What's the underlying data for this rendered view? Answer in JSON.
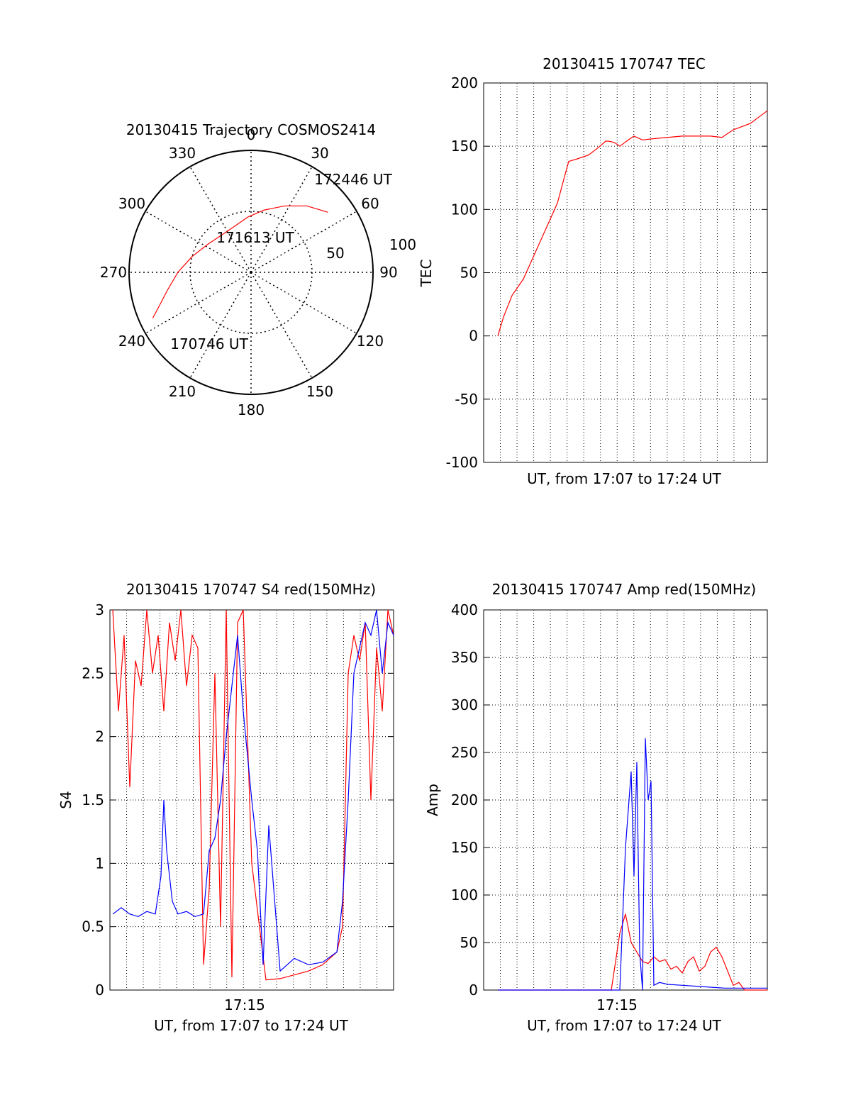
{
  "colors": {
    "red": "#ff0000",
    "blue": "#0000ff",
    "axis": "#000000",
    "grid": "#000000"
  },
  "chart_data": [
    {
      "type": "polar",
      "title": "20130415 Trajectory COSMOS2414",
      "angle_ticks": [
        "0",
        "30",
        "60",
        "90",
        "120",
        "150",
        "180",
        "210",
        "240",
        "270",
        "300",
        "330"
      ],
      "radial_ticks": [
        "50",
        "100"
      ],
      "grid": true,
      "series": [
        {
          "color": "red",
          "points": [
            {
              "azimuth": 245,
              "elevation": 10
            },
            {
              "azimuth": 250,
              "elevation": 18
            },
            {
              "azimuth": 258,
              "elevation": 27
            },
            {
              "azimuth": 270,
              "elevation": 36
            },
            {
              "azimuth": 285,
              "elevation": 45
            },
            {
              "azimuth": 303,
              "elevation": 52
            },
            {
              "azimuth": 322,
              "elevation": 55
            },
            {
              "azimuth": 340,
              "elevation": 54
            },
            {
              "azimuth": 357,
              "elevation": 49
            },
            {
              "azimuth": 12,
              "elevation": 43
            },
            {
              "azimuth": 27,
              "elevation": 35
            },
            {
              "azimuth": 40,
              "elevation": 26
            },
            {
              "azimuth": 52,
              "elevation": 18
            }
          ]
        }
      ],
      "annotations": [
        {
          "text": "172446 UT",
          "azimuth": 50,
          "elevation": 10
        },
        {
          "text": "171613 UT",
          "azimuth": 10,
          "elevation": 65
        },
        {
          "text": "170746 UT",
          "azimuth": 220,
          "elevation": 25
        }
      ]
    },
    {
      "type": "line",
      "title": "20130415 170747 TEC",
      "xlabel": "UT, from 17:07 to 17:24 UT",
      "ylabel": "TEC",
      "xlim": [
        0,
        1
      ],
      "ylim": [
        -100,
        200
      ],
      "yticks": [
        "-100",
        "-50",
        "0",
        "50",
        "100",
        "150",
        "200"
      ],
      "grid": true,
      "series": [
        {
          "color": "red",
          "x": [
            0.05,
            0.07,
            0.1,
            0.14,
            0.18,
            0.22,
            0.26,
            0.29,
            0.3,
            0.33,
            0.37,
            0.41,
            0.43,
            0.44,
            0.46,
            0.48,
            0.51,
            0.53,
            0.56,
            0.6,
            0.7,
            0.8,
            0.84,
            0.88,
            0.94,
            1.0
          ],
          "y": [
            0,
            15,
            32,
            45,
            65,
            85,
            105,
            130,
            138,
            140,
            143,
            150,
            154,
            154,
            153,
            150,
            155,
            158,
            155,
            156,
            158,
            158,
            157,
            163,
            168,
            178
          ]
        }
      ]
    },
    {
      "type": "line",
      "title": "20130415 170747 S4 red(150MHz)",
      "xlabel": "UT, from 17:07 to 17:24 UT",
      "ylabel": "S4",
      "xtick": "17:15",
      "xlim": [
        0,
        1
      ],
      "ylim": [
        0,
        3
      ],
      "yticks": [
        "0",
        "0.5",
        "1",
        "1.5",
        "2",
        "2.5",
        "3"
      ],
      "grid": true,
      "series": [
        {
          "color": "red",
          "x": [
            0.01,
            0.03,
            0.05,
            0.07,
            0.09,
            0.11,
            0.13,
            0.15,
            0.17,
            0.19,
            0.21,
            0.23,
            0.25,
            0.27,
            0.29,
            0.31,
            0.33,
            0.35,
            0.37,
            0.39,
            0.41,
            0.43,
            0.45,
            0.47,
            0.5,
            0.55,
            0.6,
            0.65,
            0.7,
            0.75,
            0.8,
            0.82,
            0.84,
            0.86,
            0.88,
            0.9,
            0.92,
            0.94,
            0.96,
            0.98,
            1.0
          ],
          "y": [
            3,
            2.2,
            2.8,
            1.6,
            2.6,
            2.4,
            3,
            2.5,
            2.8,
            2.2,
            2.9,
            2.6,
            3,
            2.4,
            2.8,
            2.7,
            0.2,
            0.8,
            2.5,
            0.5,
            3,
            0.1,
            2.9,
            3,
            1.0,
            0.08,
            0.09,
            0.12,
            0.15,
            0.2,
            0.3,
            0.5,
            2.5,
            2.8,
            2.6,
            2.9,
            1.5,
            2.7,
            2.2,
            3,
            2.8
          ]
        },
        {
          "color": "blue",
          "x": [
            0.01,
            0.04,
            0.07,
            0.1,
            0.13,
            0.16,
            0.18,
            0.19,
            0.2,
            0.22,
            0.24,
            0.27,
            0.3,
            0.33,
            0.35,
            0.37,
            0.39,
            0.41,
            0.43,
            0.45,
            0.47,
            0.5,
            0.52,
            0.54,
            0.56,
            0.6,
            0.65,
            0.7,
            0.75,
            0.8,
            0.82,
            0.84,
            0.86,
            0.88,
            0.9,
            0.92,
            0.94,
            0.96,
            0.98,
            1.0
          ],
          "y": [
            0.6,
            0.65,
            0.6,
            0.58,
            0.62,
            0.6,
            0.9,
            1.5,
            1.1,
            0.7,
            0.6,
            0.62,
            0.58,
            0.6,
            1.1,
            1.2,
            1.5,
            2.0,
            2.4,
            2.8,
            2.2,
            1.5,
            1.1,
            0.2,
            1.3,
            0.15,
            0.25,
            0.2,
            0.22,
            0.3,
            0.7,
            1.5,
            2.5,
            2.7,
            2.9,
            2.8,
            3,
            2.5,
            2.9,
            2.8
          ]
        }
      ]
    },
    {
      "type": "line",
      "title": "20130415 170747 Amp red(150MHz)",
      "xlabel": "UT, from 17:07 to 17:24 UT",
      "ylabel": "Amp",
      "xtick": "17:15",
      "xlim": [
        0,
        1
      ],
      "ylim": [
        0,
        400
      ],
      "yticks": [
        "0",
        "50",
        "100",
        "150",
        "200",
        "250",
        "300",
        "350",
        "400"
      ],
      "grid": true,
      "series": [
        {
          "color": "red",
          "x": [
            0.05,
            0.45,
            0.48,
            0.5,
            0.52,
            0.54,
            0.56,
            0.58,
            0.6,
            0.62,
            0.64,
            0.66,
            0.68,
            0.7,
            0.72,
            0.74,
            0.76,
            0.78,
            0.8,
            0.82,
            0.84,
            0.86,
            0.88,
            0.9,
            0.92,
            1.0
          ],
          "y": [
            0,
            0,
            60,
            80,
            50,
            40,
            30,
            28,
            35,
            30,
            32,
            22,
            25,
            18,
            30,
            35,
            20,
            25,
            40,
            45,
            35,
            20,
            5,
            8,
            0,
            0
          ]
        },
        {
          "color": "blue",
          "x": [
            0.05,
            0.48,
            0.5,
            0.52,
            0.53,
            0.54,
            0.55,
            0.56,
            0.57,
            0.58,
            0.59,
            0.6,
            0.62,
            0.65,
            0.7,
            0.75,
            0.8,
            0.85,
            1.0
          ],
          "y": [
            0,
            0,
            150,
            230,
            120,
            240,
            40,
            0,
            265,
            200,
            220,
            5,
            8,
            6,
            5,
            4,
            3,
            2,
            2
          ]
        }
      ]
    }
  ]
}
